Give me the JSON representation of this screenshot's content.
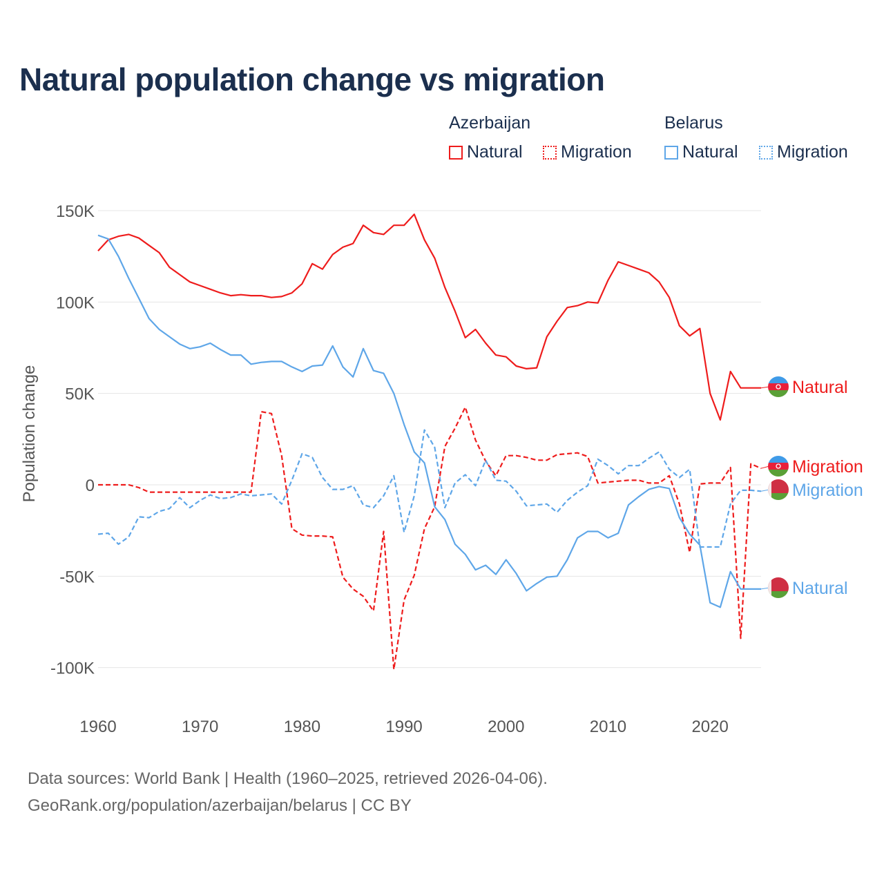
{
  "chart_data": {
    "type": "line",
    "title": "Natural population change vs migration",
    "ylabel": "Population change",
    "xlabel": "",
    "xlim": [
      1960,
      2025
    ],
    "ylim": [
      -100000,
      150000
    ],
    "x_ticks": [
      "1960",
      "1970",
      "1980",
      "1990",
      "2000",
      "2010",
      "2020"
    ],
    "y_ticks": [
      {
        "v": 150000,
        "label": "150K"
      },
      {
        "v": 100000,
        "label": "100K"
      },
      {
        "v": 50000,
        "label": "50K"
      },
      {
        "v": 0,
        "label": "0"
      },
      {
        "v": -50000,
        "label": "-50K"
      },
      {
        "v": -100000,
        "label": "-100K"
      }
    ],
    "grid": true,
    "legend": {
      "placement": "top-right",
      "groups": [
        {
          "name": "Azerbaijan",
          "items": [
            "Natural",
            "Migration"
          ]
        },
        {
          "name": "Belarus",
          "items": [
            "Natural",
            "Migration"
          ]
        }
      ]
    },
    "x_start": 1960,
    "series": [
      {
        "name": "Natural",
        "country": "Azerbaijan",
        "color": "#ee1c1c",
        "dash": false,
        "end_label": "Natural",
        "values": [
          128,
          134,
          136,
          137,
          135,
          131,
          127,
          119,
          115,
          111,
          109,
          107,
          105,
          103.5,
          104,
          103.5,
          103.5,
          102.5,
          103,
          105,
          110,
          121,
          118,
          126,
          130,
          132,
          142,
          138,
          137,
          142,
          142,
          148,
          134,
          124,
          108,
          95,
          80.5,
          85,
          77.5,
          71,
          70,
          65,
          63.5,
          64,
          81,
          89.5,
          97,
          98,
          100,
          99.5,
          112,
          122,
          120,
          118,
          116,
          111,
          102.5,
          87,
          81.5,
          85.5,
          50,
          35.5,
          62,
          53,
          53,
          53
        ]
      },
      {
        "name": "Migration",
        "country": "Azerbaijan",
        "color": "#ee1c1c",
        "dash": true,
        "end_label": "Migration",
        "values": [
          0,
          0,
          0,
          0,
          -1.5,
          -4,
          -4,
          -4,
          -4,
          -4,
          -4,
          -4,
          -4,
          -4,
          -4,
          -4,
          40,
          39,
          16,
          -24,
          -27.5,
          -28,
          -28,
          -28.5,
          -50.5,
          -57,
          -61,
          -69,
          -25.5,
          -101,
          -63,
          -49.5,
          -24,
          -12,
          21,
          31,
          42.5,
          24.5,
          13,
          5,
          16,
          16,
          15,
          13.5,
          13.5,
          16.5,
          17,
          17.5,
          15.5,
          1,
          1.5,
          2,
          2.5,
          2.5,
          1,
          1,
          5,
          -10.5,
          -37,
          0.5,
          1,
          1,
          9.5,
          -84,
          11.5,
          9
        ]
      },
      {
        "name": "Natural",
        "country": "Belarus",
        "color": "#5ea6e8",
        "dash": false,
        "end_label": "Natural",
        "values": [
          136.5,
          134.5,
          125,
          113,
          102,
          91,
          85,
          81,
          77,
          74.5,
          75.5,
          77.5,
          74,
          71,
          71,
          66,
          67,
          67.5,
          67.5,
          64.5,
          62,
          65,
          65.5,
          76,
          64.5,
          59,
          74.5,
          62.5,
          61,
          50,
          33,
          18,
          12,
          -12,
          -19,
          -32.5,
          -38,
          -46.5,
          -44,
          -49,
          -41,
          -48.5,
          -58,
          -54,
          -50.5,
          -50,
          -41,
          -29,
          -25.5,
          -25.5,
          -29,
          -26.5,
          -11,
          -6.5,
          -2.5,
          -1,
          -2,
          -18,
          -27,
          -33,
          -64.5,
          -67,
          -47.5,
          -57,
          -57,
          -57
        ]
      },
      {
        "name": "Migration",
        "country": "Belarus",
        "color": "#5ea6e8",
        "dash": true,
        "end_label": "Migration",
        "values": [
          -27,
          -26.5,
          -32.5,
          -28.5,
          -17.5,
          -18,
          -14.5,
          -13,
          -7,
          -12.5,
          -8.5,
          -5.5,
          -7.5,
          -7,
          -5,
          -6,
          -5.5,
          -5,
          -10.5,
          2.5,
          17,
          15,
          4,
          -2.5,
          -2.5,
          -0.5,
          -11,
          -12.5,
          -6,
          5,
          -26,
          -6,
          30,
          20.5,
          -12.5,
          1,
          5.5,
          -0.5,
          13.5,
          2.5,
          2,
          -3.5,
          -11.5,
          -11,
          -10.5,
          -15,
          -8.5,
          -4,
          -0.5,
          14,
          10.5,
          6,
          10.5,
          10.5,
          14.5,
          18,
          8.5,
          4,
          8.5,
          -34,
          -34,
          -34,
          -10.5,
          -3,
          -3,
          -3.5
        ]
      }
    ],
    "values_unit": "thousands"
  },
  "colors": {
    "azerbaijan": "#ee1c1c",
    "belarus": "#5ea6e8",
    "title": "#1b2f4e"
  },
  "source": {
    "line1": "Data sources: World Bank | Health (1960–2025, retrieved 2026-04-06).",
    "line2": "GeoRank.org/population/azerbaijan/belarus | CC BY"
  }
}
